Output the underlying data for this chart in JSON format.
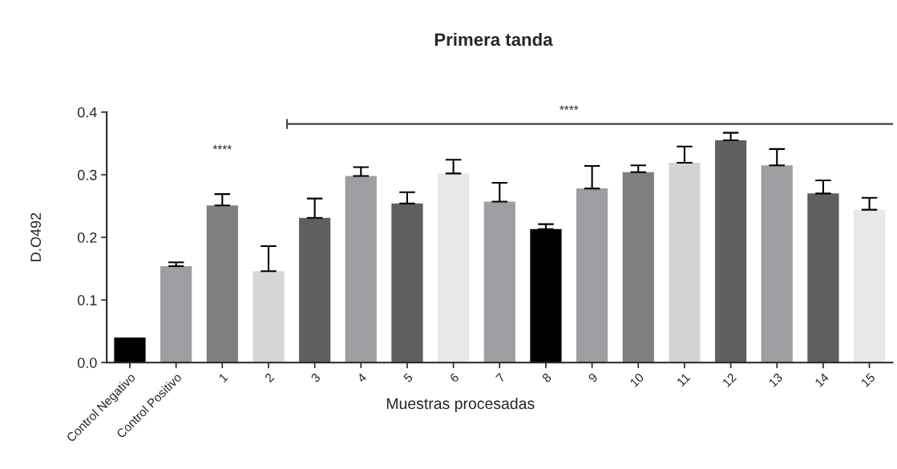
{
  "chart_data": {
    "type": "bar",
    "title": "Primera tanda",
    "xlabel": "Muestras procesadas",
    "ylabel": "D.O492",
    "categories": [
      "Control Negativo",
      "Control Positivo",
      "1",
      "2",
      "3",
      "4",
      "5",
      "6",
      "7",
      "8",
      "9",
      "10",
      "11",
      "12",
      "13",
      "14",
      "15"
    ],
    "values": [
      0.04,
      0.154,
      0.251,
      0.146,
      0.231,
      0.298,
      0.254,
      0.302,
      0.257,
      0.213,
      0.278,
      0.304,
      0.319,
      0.355,
      0.315,
      0.27,
      0.244
    ],
    "errors": [
      null,
      [
        0.154,
        0.16
      ],
      [
        0.251,
        0.269
      ],
      [
        0.146,
        0.186
      ],
      [
        0.231,
        0.262
      ],
      [
        0.298,
        0.312
      ],
      [
        0.254,
        0.272
      ],
      [
        0.302,
        0.324
      ],
      [
        0.257,
        0.287
      ],
      [
        0.213,
        0.221
      ],
      [
        0.278,
        0.314
      ],
      [
        0.304,
        0.315
      ],
      [
        0.319,
        0.345
      ],
      [
        0.355,
        0.367
      ],
      [
        0.315,
        0.341
      ],
      [
        0.27,
        0.291
      ],
      [
        0.244,
        0.263
      ]
    ],
    "colors": [
      "#000000",
      "#9e9ea2",
      "#7f7f7f",
      "#d6d6d6",
      "#5f5f5f",
      "#9e9ea2",
      "#5f5f5f",
      "#e8e8e8",
      "#9e9ea2",
      "#000000",
      "#9e9ea2",
      "#7f7f7f",
      "#d4d4d4",
      "#5f5f5f",
      "#9e9ea2",
      "#5f5f5f",
      "#e8e8e8"
    ],
    "ylim": [
      0,
      0.4
    ],
    "yticks": [
      {
        "value": 0,
        "label": "0.0"
      },
      0.1,
      0.2,
      0.3,
      0.4
    ],
    "grid": false,
    "annotations": [
      "****"
    ],
    "ref_lines": [
      {
        "axis": "y",
        "value": 0.381,
        "label": "****",
        "color": "#444444"
      }
    ]
  }
}
